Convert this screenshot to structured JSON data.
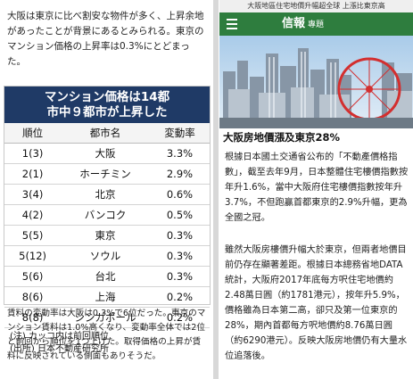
{
  "left": {
    "intro": "大阪は東京に比べ割安な物件が多く、上昇余地があったことが背景にあるとみられる。東京のマンション価格の上昇率は0.3%にとどまった。",
    "table_title_line1": "マンション価格は14都",
    "table_title_line2": "市中９都市が上昇した",
    "columns": [
      "順位",
      "都市名",
      "変動率"
    ],
    "rows": [
      {
        "rank": "1(3)",
        "city": "大阪",
        "rate": "3.3%"
      },
      {
        "rank": "2(1)",
        "city": "ホーチミン",
        "rate": "2.9%"
      },
      {
        "rank": "3(4)",
        "city": "北京",
        "rate": "0.6%"
      },
      {
        "rank": "4(2)",
        "city": "バンコク",
        "rate": "0.5%"
      },
      {
        "rank": "5(5)",
        "city": "東京",
        "rate": "0.3%"
      },
      {
        "rank": "5(12)",
        "city": "ソウル",
        "rate": "0.3%"
      },
      {
        "rank": "5(6)",
        "city": "台北",
        "rate": "0.3%"
      },
      {
        "rank": "8(6)",
        "city": "上海",
        "rate": "0.2%"
      },
      {
        "rank": "8(8)",
        "city": "シンガポール",
        "rate": "0.2%"
      }
    ],
    "note1": "(注) カッコ内は前回順位",
    "note2": "(出所) 日本不動産研究所",
    "footer": "賃料の変動率は大阪は0.3%で6位だった。東京のマンション賃料は1.0%高くなり、変動率全体では2位と前回から順位を1つ上げた。取得価格の上昇が賃料に反映されている側面もありそうだ。"
  },
  "right": {
    "top_caption": "大阪地區住宅地價升幅超全球 上漲比東京高",
    "brand": "信報",
    "brand_sub": "專題",
    "headline": "大阪房地價漲及東京28%",
    "body1": "根據日本國土交通省公布的「不動產價格指數」，截至去年9月，日本整體住宅樓價指數按年升1.6%，當中大阪府住宅樓價指數按年升3.7%，不但跑贏首都東京的2.9%升幅，更為全國之冠。",
    "body2": "雖然大阪房樓價升幅大於東京，但兩者地價目前仍存在顯著差距。根據日本總務省地DATA統計，大阪府2017年底每方呎住宅地價約2.48萬日圓（約1781港元），按年升5.9%，價格雖為日本第二高，卻只及第一位東京的28%，期內首都每方呎地價約8.76萬日圓（約6290港元）。反映大阪房地價仍有大量水位追落後。"
  }
}
